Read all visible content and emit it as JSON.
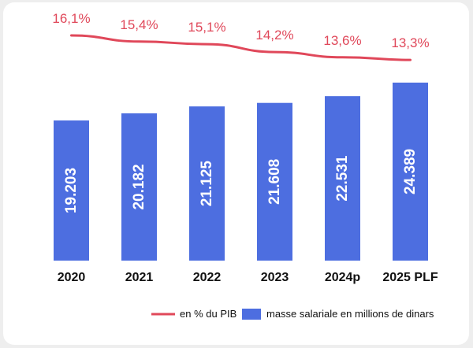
{
  "colors": {
    "bar": "#4d6ee0",
    "line": "#e0485a",
    "background": "#ffffff"
  },
  "chart_data": {
    "type": "bar",
    "categories": [
      "2020",
      "2021",
      "2022",
      "2023",
      "2024p",
      "2025 PLF"
    ],
    "series": [
      {
        "name": "masse salariale en millions de dinars",
        "type": "bar",
        "values": [
          19.203,
          20.182,
          21.125,
          21.608,
          22.531,
          24.389
        ],
        "value_labels": [
          "19.203",
          "20.182",
          "21.125",
          "21.608",
          "22.531",
          "24.389"
        ]
      },
      {
        "name": "en % du PIB",
        "type": "line",
        "values": [
          16.1,
          15.4,
          15.1,
          14.2,
          13.6,
          13.3
        ],
        "value_labels": [
          "16,1%",
          "15,4%",
          "15,1%",
          "14,2%",
          "13,6%",
          "13,3%"
        ]
      }
    ],
    "grid": false,
    "legend": "bottom-right"
  }
}
